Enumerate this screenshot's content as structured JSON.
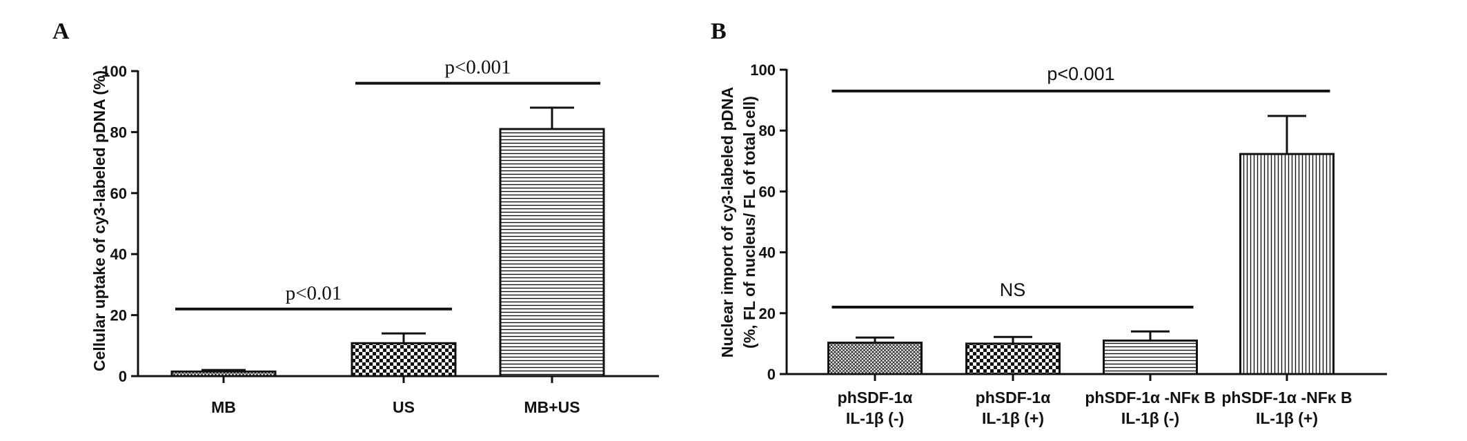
{
  "chart_data": [
    {
      "panel": "A",
      "type": "bar",
      "ylabel": "Cellular uptake of cy3-labeled pDNA (%)",
      "ylim": [
        0,
        100
      ],
      "yticks": [
        0,
        20,
        40,
        60,
        80,
        100
      ],
      "categories": [
        "MB",
        "US",
        "MB+US"
      ],
      "values": [
        1.5,
        10.8,
        81
      ],
      "errors": [
        0.5,
        3.2,
        7
      ],
      "patterns": [
        "fine-crosshatch",
        "checker",
        "horizontal-lines"
      ],
      "annotations": [
        {
          "text": "p<0.01",
          "from": 0,
          "to": 1,
          "y": 22
        },
        {
          "text": "p<0.001",
          "from": 1,
          "to": 2,
          "y": 96
        }
      ]
    },
    {
      "panel": "B",
      "type": "bar",
      "ylabel": [
        "Nuclear import of cy3-labeled pDNA",
        "(%, FL of nucleus/ FL of total cell)"
      ],
      "ylim": [
        0,
        100
      ],
      "yticks": [
        0,
        20,
        40,
        60,
        80,
        100
      ],
      "categories": [
        [
          "phSDF-1α",
          "IL-1β (-)"
        ],
        [
          "phSDF-1α",
          "IL-1β (+)"
        ],
        [
          "phSDF-1α -NFκ B",
          "IL-1β (-)"
        ],
        [
          "phSDF-1α -NFκ B",
          "IL-1β (+)"
        ]
      ],
      "values": [
        10.3,
        10,
        11,
        72.3
      ],
      "errors": [
        1.7,
        2.2,
        3,
        12.5
      ],
      "patterns": [
        "fine-crosshatch",
        "checker",
        "horizontal-lines",
        "vertical-lines"
      ],
      "annotations": [
        {
          "text": "NS",
          "from": 0,
          "to": 2,
          "y": 22
        },
        {
          "text": "p<0.001",
          "from": 0,
          "to": 3,
          "y": 93
        }
      ]
    }
  ]
}
